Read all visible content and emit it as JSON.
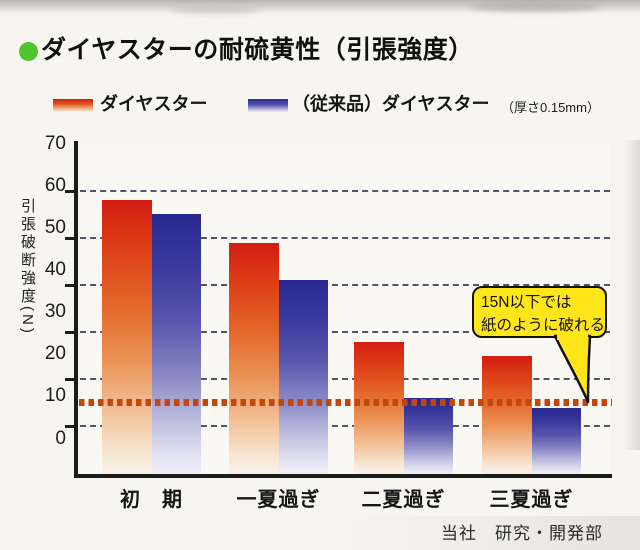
{
  "page": {
    "background": "#f7f5ef"
  },
  "title": {
    "bullet_color": "#4ec42e",
    "text": "ダイヤスターの耐硫黄性（引張強度）"
  },
  "legend": {
    "items": [
      {
        "label": "ダイヤスター",
        "swatch": "red-gradient",
        "color_top": "#d31d12"
      },
      {
        "label": "（従来品）ダイヤスター",
        "swatch": "blue-gradient",
        "color_top": "#282890"
      }
    ],
    "note": "（厚さ0.15mm）"
  },
  "callout": {
    "line1": "15N以下では",
    "line2": "紙のように破れる",
    "bg_color": "#ffe61a"
  },
  "footer": {
    "text": "当社　研究・開発部"
  },
  "chart_data": {
    "type": "bar",
    "title": "ダイヤスターの耐硫黄性（引張強度）",
    "categories": [
      "初　期",
      "一夏過ぎ",
      "二夏過ぎ",
      "三夏過ぎ"
    ],
    "series": [
      {
        "name": "ダイヤスター",
        "values": [
          58,
          49,
          28,
          25
        ],
        "color": "red-to-white-gradient"
      },
      {
        "name": "（従来品）ダイヤスター",
        "values": [
          55,
          41,
          16,
          14
        ],
        "color": "blue-to-white-gradient"
      }
    ],
    "ylabel": "引張破断強度(N)",
    "ylim": [
      0,
      70
    ],
    "yticks": [
      0,
      10,
      20,
      30,
      40,
      50,
      60,
      70
    ],
    "gridlines": [
      10,
      20,
      30,
      40,
      50,
      60
    ],
    "grid_style": "dashed",
    "grid_color": "#50576b",
    "legend_position": "top",
    "threshold_line": {
      "value": 15,
      "color": "#c2470a",
      "style": "dotted",
      "annotation": "15N以下では紙のように破れる"
    }
  }
}
